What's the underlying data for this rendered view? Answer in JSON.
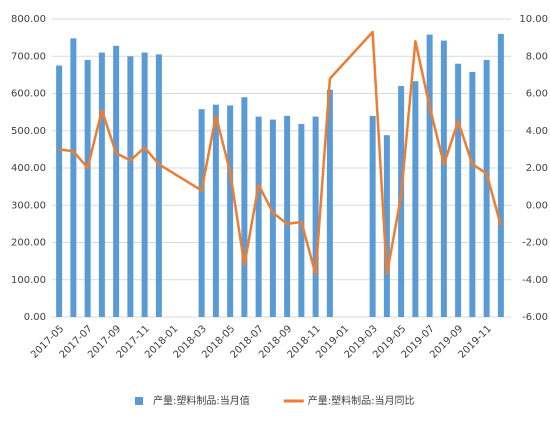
{
  "chart_data": {
    "type": "bar_line",
    "categories": [
      "2017-05",
      null,
      "2017-07",
      null,
      "2017-09",
      null,
      "2017-11",
      null,
      "2018-01",
      null,
      "2018-03",
      null,
      "2018-05",
      null,
      "2018-07",
      null,
      "2018-09",
      null,
      "2018-11",
      null,
      "2019-01",
      null,
      "2019-03",
      null,
      "2019-05",
      null,
      "2019-07",
      null,
      "2019-09",
      null,
      "2019-11",
      null
    ],
    "series": [
      {
        "name": "产量:塑料制品:当月值",
        "type": "bar",
        "color": "#5b9bd5",
        "values": [
          675,
          748,
          690,
          710,
          728,
          700,
          710,
          705,
          null,
          null,
          558,
          570,
          568,
          590,
          538,
          530,
          540,
          518,
          538,
          610,
          null,
          null,
          540,
          488,
          620,
          633,
          758,
          742,
          680,
          658,
          690,
          760
        ]
      },
      {
        "name": "产量:塑料制品:当月同比",
        "type": "line",
        "axis": "y2",
        "color": "#ed7d31",
        "span_gaps": true,
        "values": [
          3.0,
          2.9,
          2.0,
          5.1,
          2.8,
          2.4,
          3.1,
          2.2,
          null,
          null,
          0.8,
          4.8,
          1.8,
          -3.2,
          1.1,
          -0.4,
          -1.0,
          -0.9,
          -3.7,
          6.8,
          null,
          null,
          9.3,
          -3.7,
          0.5,
          8.8,
          5.3,
          2.2,
          4.5,
          2.2,
          1.7,
          -1.1
        ]
      }
    ],
    "ylim": [
      0,
      800
    ],
    "yticks": [
      {
        "value": 0,
        "label": "0.00"
      },
      {
        "value": 100,
        "label": "100.00"
      },
      {
        "value": 200,
        "label": "200.00"
      },
      {
        "value": 300,
        "label": "300.00"
      },
      {
        "value": 400,
        "label": "400.00"
      },
      {
        "value": 500,
        "label": "500.00"
      },
      {
        "value": 600,
        "label": "600.00"
      },
      {
        "value": 700,
        "label": "700.00"
      },
      {
        "value": 800,
        "label": "800.00"
      }
    ],
    "y2lim": [
      -6,
      10
    ],
    "y2ticks": [
      {
        "value": -6,
        "label": "-6.00"
      },
      {
        "value": -4,
        "label": "-4.00"
      },
      {
        "value": -2,
        "label": "-2.00"
      },
      {
        "value": 0,
        "label": "0.00"
      },
      {
        "value": 2,
        "label": "2.00"
      },
      {
        "value": 4,
        "label": "4.00"
      },
      {
        "value": 6,
        "label": "6.00"
      },
      {
        "value": 8,
        "label": "8.00"
      },
      {
        "value": 10,
        "label": "10.00"
      }
    ],
    "grid": true,
    "legend": "bottom"
  }
}
